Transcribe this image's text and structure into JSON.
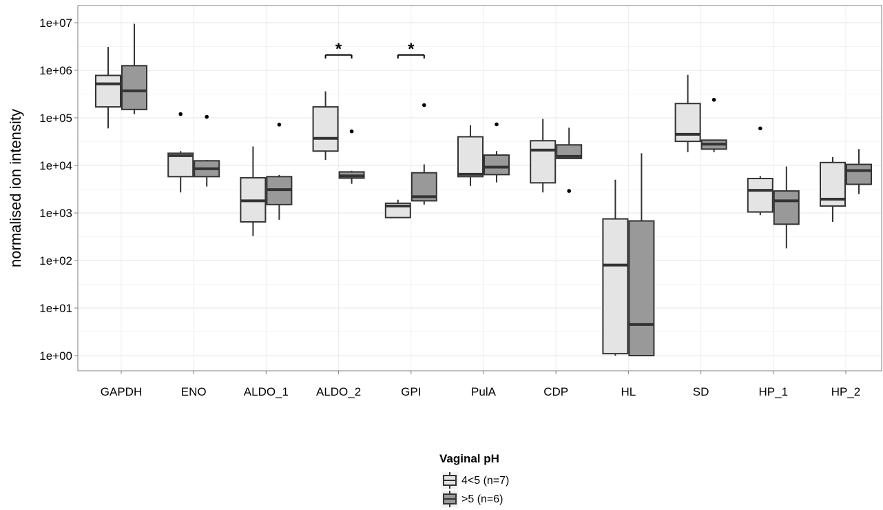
{
  "chart_data": {
    "type": "box",
    "ylabel": "normalised ion intensity",
    "xlabel": "",
    "yscale": "log10",
    "ylim": [
      0.5,
      20000000
    ],
    "yticks": [
      1,
      10,
      100,
      1000,
      10000,
      100000,
      1000000,
      10000000
    ],
    "ytick_labels": [
      "1e+00",
      "1e+01",
      "1e+02",
      "1e+03",
      "1e+04",
      "1e+05",
      "1e+06",
      "1e+07"
    ],
    "grid": true,
    "legend_position": "bottom",
    "legend": {
      "title": "Vaginal pH",
      "entries": [
        {
          "label": "4<5 (n=7)",
          "color": "#e4e4e4"
        },
        {
          "label": ">5 (n=6)",
          "color": "#999999"
        }
      ]
    },
    "categories": [
      "GAPDH",
      "ENO",
      "ALDO_1",
      "ALDO_2",
      "GPI",
      "PulA",
      "CDP",
      "HL",
      "SD",
      "HP_1",
      "HP_2"
    ],
    "series": [
      {
        "name": "4<5 (n=7)",
        "color": "#e4e4e4",
        "boxes": [
          {
            "whisker_low": 60000,
            "q1": 170000,
            "median": 520000,
            "q3": 780000,
            "whisker_high": 3100000,
            "outliers": []
          },
          {
            "whisker_low": 2700,
            "q1": 5800,
            "median": 16000,
            "q3": 18000,
            "whisker_high": 20000,
            "outliers": [
              120000
            ]
          },
          {
            "whisker_low": 330,
            "q1": 650,
            "median": 1800,
            "q3": 5500,
            "whisker_high": 25000,
            "outliers": []
          },
          {
            "whisker_low": 13000,
            "q1": 20000,
            "median": 37000,
            "q3": 170000,
            "whisker_high": 360000,
            "outliers": []
          },
          {
            "whisker_low": 800,
            "q1": 800,
            "median": 1400,
            "q3": 1600,
            "whisker_high": 1900,
            "outliers": []
          },
          {
            "whisker_low": 3700,
            "q1": 5800,
            "median": 6500,
            "q3": 40000,
            "whisker_high": 70000,
            "outliers": []
          },
          {
            "whisker_low": 2700,
            "q1": 4300,
            "median": 21000,
            "q3": 33000,
            "whisker_high": 95000,
            "outliers": []
          },
          {
            "whisker_low": 1,
            "q1": 1.1,
            "median": 80,
            "q3": 750,
            "whisker_high": 5000,
            "outliers": []
          },
          {
            "whisker_low": 19000,
            "q1": 32000,
            "median": 45000,
            "q3": 200000,
            "whisker_high": 800000,
            "outliers": []
          },
          {
            "whisker_low": 900,
            "q1": 1050,
            "median": 3000,
            "q3": 5300,
            "whisker_high": 6000,
            "outliers": [
              60000
            ]
          },
          {
            "whisker_low": 650,
            "q1": 1400,
            "median": 1950,
            "q3": 11500,
            "whisker_high": 15000,
            "outliers": []
          }
        ]
      },
      {
        "name": ">5 (n=6)",
        "color": "#999999",
        "boxes": [
          {
            "whisker_low": 120000,
            "q1": 150000,
            "median": 370000,
            "q3": 1250000,
            "whisker_high": 9500000,
            "outliers": []
          },
          {
            "whisker_low": 3600,
            "q1": 5800,
            "median": 8500,
            "q3": 12500,
            "whisker_high": 13000,
            "outliers": [
              105000
            ]
          },
          {
            "whisker_low": 720,
            "q1": 1500,
            "median": 3100,
            "q3": 5800,
            "whisker_high": 6300,
            "outliers": [
              72000
            ]
          },
          {
            "whisker_low": 4100,
            "q1": 5400,
            "median": 6000,
            "q3": 7300,
            "whisker_high": 7700,
            "outliers": [
              52000
            ]
          },
          {
            "whisker_low": 1500,
            "q1": 1800,
            "median": 2200,
            "q3": 7000,
            "whisker_high": 10500,
            "outliers": [
              185000
            ]
          },
          {
            "whisker_low": 4400,
            "q1": 6400,
            "median": 9200,
            "q3": 16500,
            "whisker_high": 20000,
            "outliers": [
              73000
            ]
          },
          {
            "whisker_low": 14000,
            "q1": 14000,
            "median": 15500,
            "q3": 27000,
            "whisker_high": 62000,
            "outliers": [
              2900
            ]
          },
          {
            "whisker_low": 1,
            "q1": 1,
            "median": 4.5,
            "q3": 680,
            "whisker_high": 18000,
            "outliers": []
          },
          {
            "whisker_low": 19000,
            "q1": 22000,
            "median": 28000,
            "q3": 34000,
            "whisker_high": 35000,
            "outliers": [
              240000
            ]
          },
          {
            "whisker_low": 180,
            "q1": 580,
            "median": 1800,
            "q3": 2900,
            "whisker_high": 9500,
            "outliers": []
          },
          {
            "whisker_low": 2500,
            "q1": 4000,
            "median": 7800,
            "q3": 10500,
            "whisker_high": 22000,
            "outliers": []
          }
        ]
      }
    ],
    "annotations": [
      {
        "text": "*",
        "category": "ALDO_2",
        "y": 2100000
      },
      {
        "text": "*",
        "category": "GPI",
        "y": 2100000
      }
    ]
  }
}
